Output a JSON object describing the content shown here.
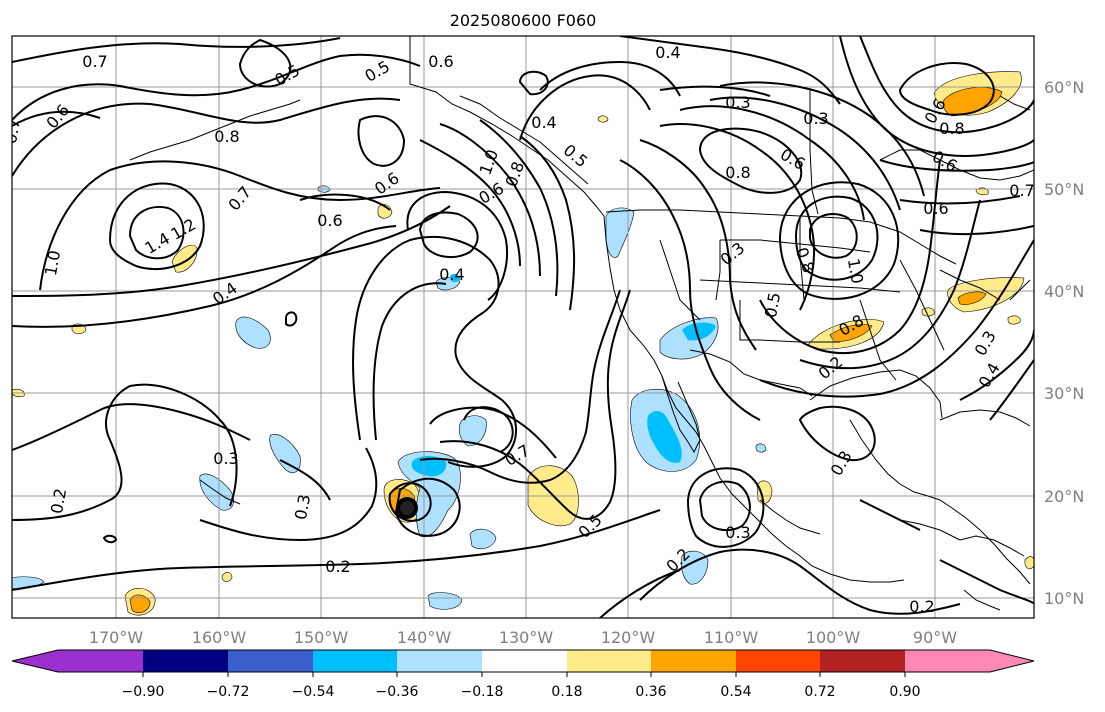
{
  "title": "2025080600 F060",
  "map": {
    "lon_ticks": [
      "170°W",
      "160°W",
      "150°W",
      "140°W",
      "130°W",
      "120°W",
      "110°W",
      "100°W",
      "90°W"
    ],
    "lat_ticks": [
      "60°N",
      "50°N",
      "40°N",
      "30°N",
      "20°N",
      "10°N"
    ],
    "grid": true,
    "contour_labels": [
      "0.7",
      "0.6",
      "0.5",
      "0.5",
      "0.6",
      "0.8",
      "1.0",
      "1.4",
      "1.2",
      "0.7",
      "0.6",
      "0.4",
      "0.6",
      "0.4",
      "0.3",
      "0.2",
      "0.3",
      "0.2",
      "0.7",
      "0.5",
      "1.0",
      "0.8",
      "0.6",
      "0.4",
      "0.5",
      "0.4",
      "0.3",
      "0.8",
      "0.6",
      "0.3",
      "0.8",
      "1.0",
      "0.5",
      "0.8",
      "0.2",
      "0.3",
      "0.3",
      "0.2",
      "0.3",
      "0.2",
      "0.6",
      "0.8",
      "0.6",
      "0.7",
      "0.6",
      "0.3",
      "0.4",
      "0.7"
    ],
    "colors": {
      "neg_090": "#9b30d0",
      "neg_072": "#000080",
      "neg_054": "#3a5fcd",
      "neg_036": "#00bfff",
      "neg_018": "#aee0ff",
      "neutral": "#ffffff",
      "pos_018": "#ffeb8a",
      "pos_036": "#ffa500",
      "pos_054": "#ff4500",
      "pos_072": "#b22222",
      "pos_090": "#ff88b4"
    }
  },
  "colorbar": {
    "tick_labels": [
      "−0.90",
      "−0.72",
      "−0.54",
      "−0.36",
      "−0.18",
      "0.18",
      "0.36",
      "0.54",
      "0.72",
      "0.90"
    ],
    "extend": "both"
  }
}
